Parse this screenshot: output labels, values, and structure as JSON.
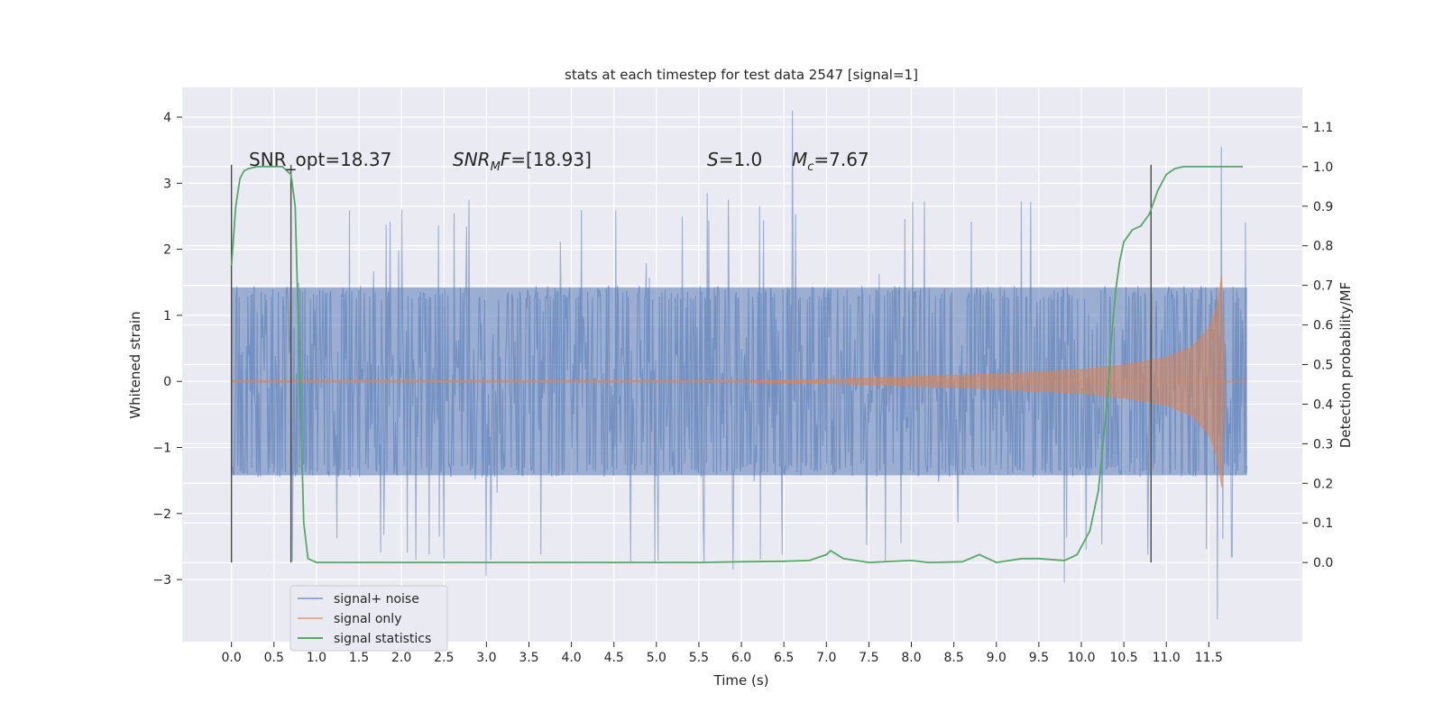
{
  "chart_data": {
    "type": "line",
    "title": "stats at each timestep for test data 2547 [signal=1]",
    "xlabel": "Time (s)",
    "ylabel": "Whitened strain",
    "ylabel_right": "Detection probability/MF",
    "xlim": [
      -0.58,
      12.6
    ],
    "ylim": [
      -3.94,
      4.45
    ],
    "ylim_right": [
      -0.2,
      1.2
    ],
    "x_ticks": [
      "0.0",
      "0.5",
      "1.0",
      "1.5",
      "2.0",
      "2.5",
      "3.0",
      "3.5",
      "4.0",
      "4.5",
      "5.0",
      "5.5",
      "6.0",
      "6.5",
      "7.0",
      "7.5",
      "8.0",
      "8.5",
      "9.0",
      "9.5",
      "10.0",
      "10.5",
      "11.0",
      "11.5"
    ],
    "y_ticks_left": [
      "4",
      "3",
      "2",
      "1",
      "0",
      "−1",
      "−2",
      "−3"
    ],
    "y_ticks_right": [
      "1.1",
      "1.0",
      "0.9",
      "0.8",
      "0.7",
      "0.6",
      "0.5",
      "0.4",
      "0.3",
      "0.2",
      "0.1",
      "0.0"
    ],
    "grid": true,
    "legend": "bottom-left",
    "annotations": [
      {
        "text": "SNR_opt=18.37",
        "x": 0.2,
        "y": 3.3
      },
      {
        "text": "SNRMF=[18.93]",
        "x": 2.6,
        "y": 3.3
      },
      {
        "text": "S=1.0",
        "x": 5.6,
        "y": 3.3
      },
      {
        "text": "Mc=7.67",
        "x": 6.6,
        "y": 3.3
      }
    ],
    "markers_vertical": [
      0.0,
      0.7,
      10.82
    ],
    "series": [
      {
        "name": "signal+ noise",
        "color": "#4c72b0",
        "axis": "left",
        "description": "dense whitened strain noise, roughly ±1.45 core band with spikes to ±3",
        "x_range": [
          0.0,
          11.95
        ],
        "envelope_core": 1.45,
        "spikes": [
          [
            6.6,
            4.1
          ],
          [
            11.65,
            3.55
          ],
          [
            11.6,
            -3.6
          ],
          [
            9.8,
            -3.05
          ],
          [
            3.0,
            -2.95
          ],
          [
            5.9,
            -2.85
          ],
          [
            5.6,
            2.85
          ]
        ]
      },
      {
        "name": "signal only",
        "color": "#dd8452",
        "axis": "left",
        "description": "chirp signal, amplitude grows toward merger near 11.65 s",
        "x_range": [
          0.0,
          11.95
        ],
        "envelope": [
          [
            0.0,
            0.01
          ],
          [
            6.0,
            0.01
          ],
          [
            7.0,
            0.03
          ],
          [
            8.0,
            0.07
          ],
          [
            9.0,
            0.11
          ],
          [
            10.0,
            0.18
          ],
          [
            10.5,
            0.25
          ],
          [
            11.0,
            0.36
          ],
          [
            11.3,
            0.52
          ],
          [
            11.5,
            0.8
          ],
          [
            11.6,
            1.15
          ],
          [
            11.65,
            1.6
          ],
          [
            11.68,
            0.0
          ],
          [
            11.95,
            0.0
          ]
        ]
      },
      {
        "name": "signal statistics",
        "color": "#55a868",
        "axis": "right",
        "x": [
          0.0,
          0.05,
          0.1,
          0.15,
          0.2,
          0.3,
          0.4,
          0.5,
          0.6,
          0.65,
          0.7,
          0.75,
          0.8,
          0.85,
          0.9,
          1.0,
          2.0,
          3.0,
          4.0,
          5.0,
          5.5,
          6.0,
          6.5,
          6.8,
          7.0,
          7.05,
          7.2,
          7.5,
          8.0,
          8.2,
          8.6,
          8.8,
          9.0,
          9.3,
          9.5,
          9.8,
          9.95,
          10.1,
          10.2,
          10.3,
          10.35,
          10.4,
          10.45,
          10.5,
          10.6,
          10.7,
          10.8,
          10.9,
          11.0,
          11.1,
          11.2,
          11.3,
          11.5,
          11.6,
          11.65,
          11.7,
          11.8,
          11.9
        ],
        "y": [
          0.75,
          0.9,
          0.97,
          0.99,
          0.995,
          1.0,
          1.0,
          1.0,
          1.0,
          0.99,
          0.98,
          0.9,
          0.5,
          0.1,
          0.01,
          0.0,
          0.0,
          0.0,
          0.0,
          0.0,
          0.0,
          0.002,
          0.003,
          0.005,
          0.02,
          0.03,
          0.01,
          0.0,
          0.005,
          0.0,
          0.002,
          0.02,
          0.0,
          0.01,
          0.01,
          0.005,
          0.02,
          0.08,
          0.18,
          0.4,
          0.55,
          0.68,
          0.76,
          0.81,
          0.84,
          0.85,
          0.88,
          0.94,
          0.98,
          0.995,
          1.0,
          1.0,
          1.0,
          1.0,
          1.0,
          1.0,
          1.0,
          1.0
        ]
      }
    ]
  }
}
